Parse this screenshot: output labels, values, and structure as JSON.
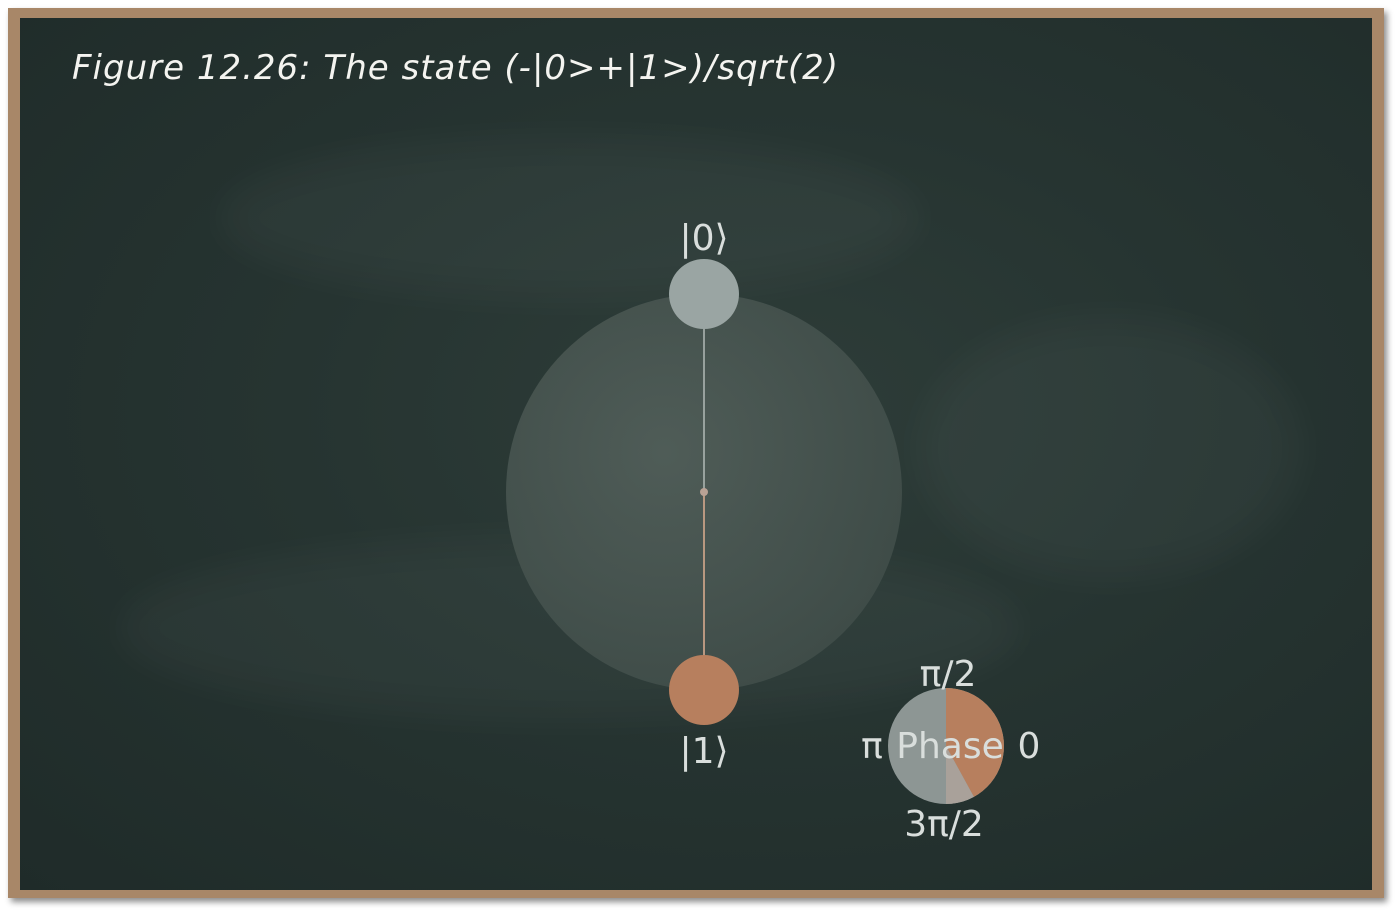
{
  "title": "Figure 12.26: The state (-|0>+|1>)/sqrt(2)",
  "diagram": {
    "ket0_label": "|0⟩",
    "ket1_label": "|1⟩",
    "phase_label": "Phase",
    "phase_ticks": {
      "top": "π/2",
      "left": "π",
      "right": "0",
      "bottom": "3π/2"
    },
    "amplitude_ket0": 0.7071,
    "amplitude_ket1": 0.7071,
    "phase_value_rad": 3.14159,
    "colors": {
      "board": "#263431",
      "ket0": "#9aa5a3",
      "ket1": "#b77f5e",
      "sphere": "#4a5752",
      "frame": "#a88768"
    }
  }
}
